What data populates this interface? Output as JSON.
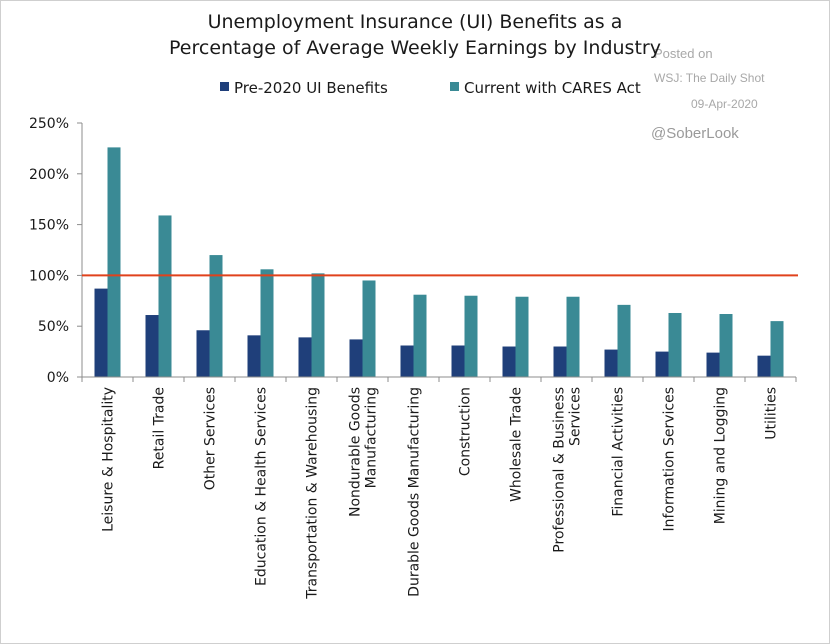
{
  "chart_data": {
    "type": "bar",
    "title_lines": [
      "Unemployment Insurance (UI) Benefits as a",
      "Percentage of Average Weekly Earnings by Industry"
    ],
    "categories": [
      [
        "Leisure & Hospitality"
      ],
      [
        "Retail Trade"
      ],
      [
        "Other Services"
      ],
      [
        "Education & Health Services"
      ],
      [
        "Transportation & Warehousing"
      ],
      [
        "Nondurable Goods",
        "Manufacturing"
      ],
      [
        "Durable Goods Manufacturing"
      ],
      [
        "Construction"
      ],
      [
        "Wholesale Trade"
      ],
      [
        "Professional & Business",
        "Services"
      ],
      [
        "Financial Activities"
      ],
      [
        "Information Services"
      ],
      [
        "Mining and Logging"
      ],
      [
        "Utilities"
      ]
    ],
    "series": [
      {
        "name": "Pre-2020 UI Benefits",
        "color": "#1f3f7a",
        "values": [
          87,
          61,
          46,
          41,
          39,
          37,
          31,
          31,
          30,
          30,
          27,
          25,
          24,
          21
        ]
      },
      {
        "name": "Current with CARES Act",
        "color": "#3a8a95",
        "values": [
          226,
          159,
          120,
          106,
          102,
          95,
          81,
          80,
          79,
          79,
          71,
          63,
          62,
          55
        ]
      }
    ],
    "reference_line": {
      "value": 100,
      "color": "#e0421c"
    },
    "ylim": [
      0,
      250
    ],
    "yticks": [
      0,
      50,
      100,
      150,
      200,
      250
    ],
    "ytick_labels": [
      "0%",
      "50%",
      "100%",
      "150%",
      "200%",
      "250%"
    ],
    "legend_position": "top"
  },
  "watermark": {
    "posted_on": "Posted on",
    "source": "WSJ: The Daily Shot",
    "date": "09-Apr-2020",
    "handle": "@SoberLook"
  }
}
